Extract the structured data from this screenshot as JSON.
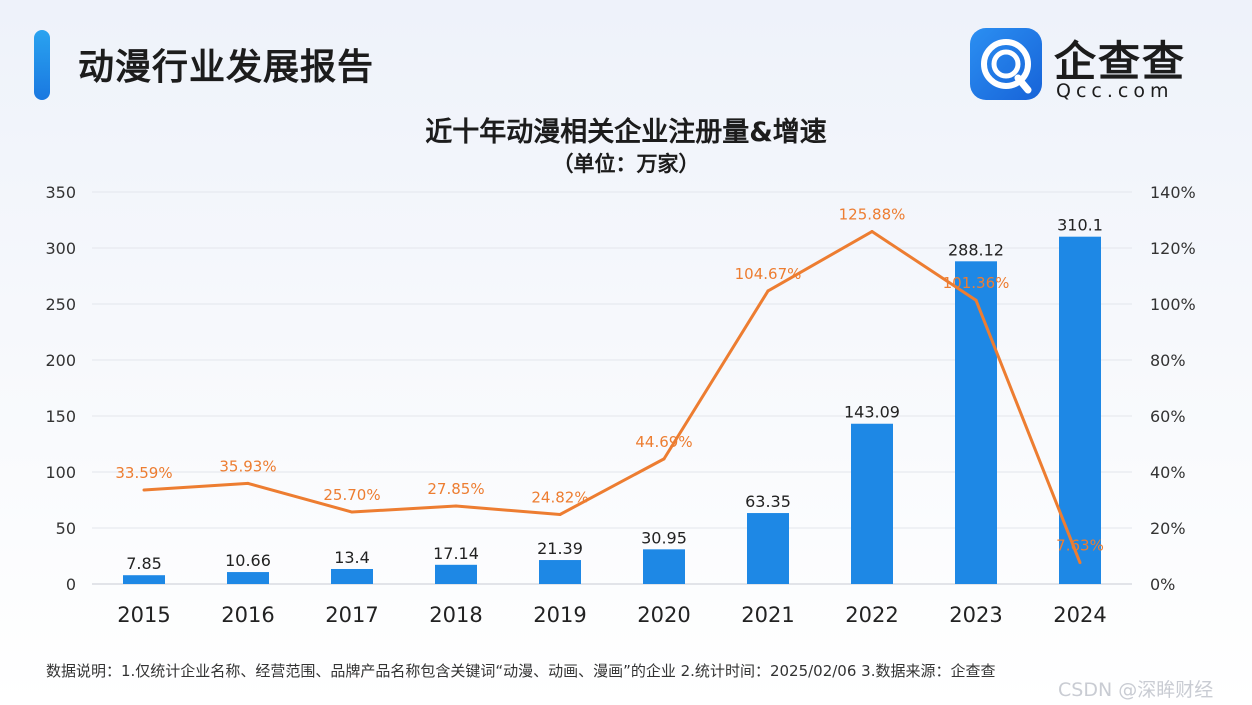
{
  "header": {
    "title": "动漫行业发展报告"
  },
  "logo": {
    "name": "企查查",
    "domain": "Qcc.com"
  },
  "chart_data": {
    "type": "bar",
    "title": "近十年动漫相关企业注册量&增速",
    "subtitle": "（单位：万家）",
    "categories": [
      "2015",
      "2016",
      "2017",
      "2018",
      "2019",
      "2020",
      "2021",
      "2022",
      "2023",
      "2024"
    ],
    "series": [
      {
        "type": "bar",
        "axis": "left",
        "color": "#1e88e5",
        "values": [
          7.85,
          10.66,
          13.4,
          17.14,
          21.39,
          30.95,
          63.35,
          143.09,
          288.12,
          310.1
        ],
        "labels": [
          "7.85",
          "10.66",
          "13.4",
          "17.14",
          "21.39",
          "30.95",
          "63.35",
          "143.09",
          "288.12",
          "310.1"
        ]
      },
      {
        "type": "line",
        "axis": "right",
        "color": "#ed7d31",
        "values": [
          33.59,
          35.93,
          25.7,
          27.85,
          24.82,
          44.69,
          104.67,
          125.88,
          101.36,
          7.63
        ],
        "labels": [
          "33.59%",
          "35.93%",
          "25.70%",
          "27.85%",
          "24.82%",
          "44.69%",
          "104.67%",
          "125.88%",
          "101.36%",
          "7.63%"
        ]
      }
    ],
    "y_left": {
      "min": 0,
      "max": 350,
      "ticks": [
        "0",
        "50",
        "100",
        "150",
        "200",
        "250",
        "300",
        "350"
      ]
    },
    "y_right": {
      "min": 0,
      "max": 140,
      "ticks": [
        "0%",
        "20%",
        "40%",
        "60%",
        "80%",
        "100%",
        "120%",
        "140%"
      ]
    },
    "grid": true,
    "legend": "none"
  },
  "footer": {
    "note": "数据说明：1.仅统计企业名称、经营范围、品牌产品名称包含关键词“动漫、动画、漫画”的企业   2.统计时间：2025/02/06   3.数据来源：企查查"
  },
  "watermark": "CSDN @深眸财经"
}
